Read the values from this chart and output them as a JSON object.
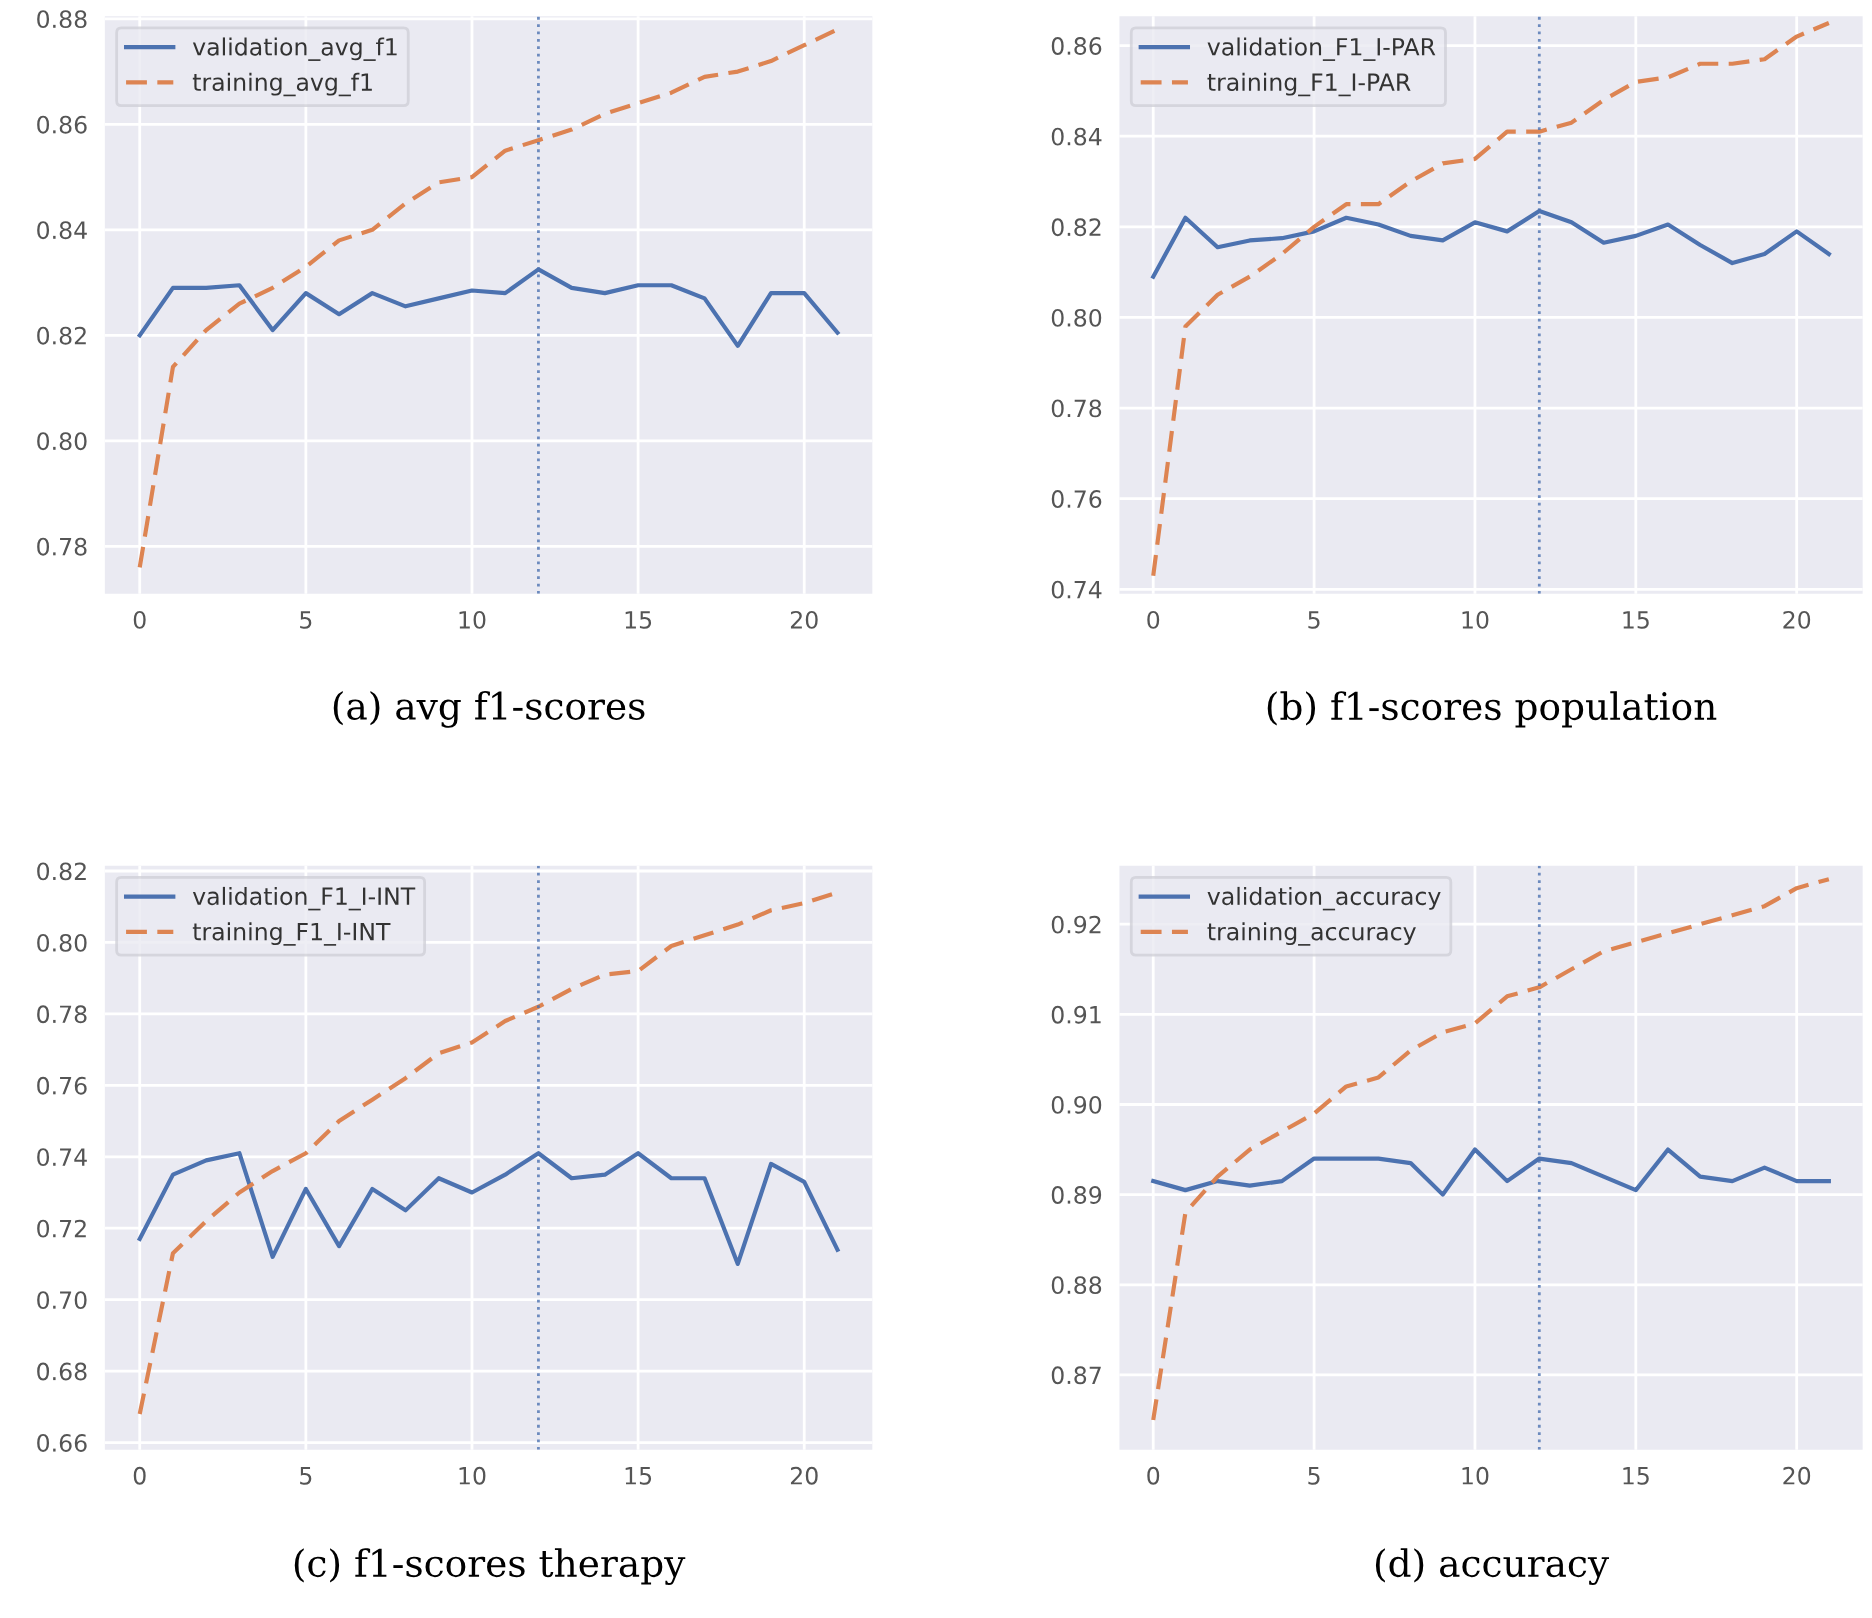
{
  "chart_data": [
    {
      "type": "line",
      "x": [
        0,
        1,
        2,
        3,
        4,
        5,
        6,
        7,
        8,
        9,
        10,
        11,
        12,
        13,
        14,
        15,
        16,
        17,
        18,
        19,
        20,
        21
      ],
      "xlim": [
        -1.05,
        22.05
      ],
      "xticks": [
        0,
        5,
        10,
        15,
        20
      ],
      "ylim": [
        0.771,
        0.8805
      ],
      "yticks": [
        {
          "value": 0.78,
          "label": "0.78"
        },
        {
          "value": 0.8,
          "label": "0.80"
        },
        {
          "value": 0.82,
          "label": "0.82"
        },
        {
          "value": 0.84,
          "label": "0.84"
        },
        {
          "value": 0.86,
          "label": "0.86"
        },
        {
          "value": 0.88,
          "label": "0.88"
        }
      ],
      "grid": true,
      "legend": "top left",
      "series": [
        {
          "name": "validation_avg_f1",
          "color": "#4c72b0",
          "line_style": "solid",
          "values": [
            0.82,
            0.829,
            0.829,
            0.8295,
            0.821,
            0.828,
            0.824,
            0.828,
            0.8255,
            0.827,
            0.8285,
            0.828,
            0.8325,
            0.829,
            0.828,
            0.8295,
            0.8295,
            0.827,
            0.818,
            0.828,
            0.828,
            0.8205
          ]
        },
        {
          "name": "training_avg_f1",
          "color": "#dd8452",
          "line_style": "dashed",
          "values": [
            0.776,
            0.814,
            0.821,
            0.826,
            0.829,
            0.833,
            0.838,
            0.84,
            0.845,
            0.849,
            0.85,
            0.855,
            0.857,
            0.859,
            0.862,
            0.864,
            0.866,
            0.869,
            0.87,
            0.872,
            0.875,
            0.878
          ]
        }
      ],
      "ref_lines": [
        {
          "axis": "x",
          "value": 12,
          "color": "#4c72b0",
          "line_style": "dotted"
        }
      ],
      "annotations": [
        "(a) avg f1-scores"
      ]
    },
    {
      "type": "line",
      "x": [
        0,
        1,
        2,
        3,
        4,
        5,
        6,
        7,
        8,
        9,
        10,
        11,
        12,
        13,
        14,
        15,
        16,
        17,
        18,
        19,
        20,
        21
      ],
      "xlim": [
        -1.05,
        22.05
      ],
      "xticks": [
        0,
        5,
        10,
        15,
        20
      ],
      "ylim": [
        0.739,
        0.8665
      ],
      "yticks": [
        {
          "value": 0.74,
          "label": "0.74"
        },
        {
          "value": 0.76,
          "label": "0.76"
        },
        {
          "value": 0.78,
          "label": "0.78"
        },
        {
          "value": 0.8,
          "label": "0.80"
        },
        {
          "value": 0.82,
          "label": "0.82"
        },
        {
          "value": 0.84,
          "label": "0.84"
        },
        {
          "value": 0.86,
          "label": "0.86"
        }
      ],
      "grid": true,
      "legend": "top left",
      "series": [
        {
          "name": "validation_F1_I-PAR",
          "color": "#4c72b0",
          "line_style": "solid",
          "values": [
            0.809,
            0.822,
            0.8155,
            0.817,
            0.8175,
            0.819,
            0.822,
            0.8205,
            0.818,
            0.817,
            0.821,
            0.819,
            0.8235,
            0.821,
            0.8165,
            0.818,
            0.8205,
            0.816,
            0.812,
            0.814,
            0.819,
            0.814
          ]
        },
        {
          "name": "training_F1_I-PAR",
          "color": "#dd8452",
          "line_style": "dashed",
          "values": [
            0.743,
            0.798,
            0.805,
            0.809,
            0.814,
            0.82,
            0.825,
            0.825,
            0.83,
            0.834,
            0.835,
            0.841,
            0.841,
            0.843,
            0.848,
            0.852,
            0.853,
            0.856,
            0.856,
            0.857,
            0.862,
            0.865
          ]
        }
      ],
      "ref_lines": [
        {
          "axis": "x",
          "value": 12,
          "color": "#4c72b0",
          "line_style": "dotted"
        }
      ],
      "annotations": [
        "(b) f1-scores population"
      ]
    },
    {
      "type": "line",
      "x": [
        0,
        1,
        2,
        3,
        4,
        5,
        6,
        7,
        8,
        9,
        10,
        11,
        12,
        13,
        14,
        15,
        16,
        17,
        18,
        19,
        20,
        21
      ],
      "xlim": [
        -1.05,
        22.05
      ],
      "xticks": [
        0,
        5,
        10,
        15,
        20
      ],
      "ylim": [
        0.658,
        0.8215
      ],
      "yticks": [
        {
          "value": 0.66,
          "label": "0.66"
        },
        {
          "value": 0.68,
          "label": "0.68"
        },
        {
          "value": 0.7,
          "label": "0.70"
        },
        {
          "value": 0.72,
          "label": "0.72"
        },
        {
          "value": 0.74,
          "label": "0.74"
        },
        {
          "value": 0.76,
          "label": "0.76"
        },
        {
          "value": 0.78,
          "label": "0.78"
        },
        {
          "value": 0.8,
          "label": "0.80"
        },
        {
          "value": 0.82,
          "label": "0.82"
        }
      ],
      "grid": true,
      "legend": "top left",
      "series": [
        {
          "name": "validation_F1_I-INT",
          "color": "#4c72b0",
          "line_style": "solid",
          "values": [
            0.717,
            0.735,
            0.739,
            0.741,
            0.712,
            0.731,
            0.715,
            0.731,
            0.725,
            0.734,
            0.73,
            0.735,
            0.741,
            0.734,
            0.735,
            0.741,
            0.734,
            0.734,
            0.71,
            0.738,
            0.733,
            0.714
          ]
        },
        {
          "name": "training_F1_I-INT",
          "color": "#dd8452",
          "line_style": "dashed",
          "values": [
            0.668,
            0.713,
            0.722,
            0.73,
            0.736,
            0.741,
            0.75,
            0.756,
            0.762,
            0.769,
            0.772,
            0.778,
            0.782,
            0.787,
            0.791,
            0.792,
            0.799,
            0.802,
            0.805,
            0.809,
            0.811,
            0.814
          ]
        }
      ],
      "ref_lines": [
        {
          "axis": "x",
          "value": 12,
          "color": "#4c72b0",
          "line_style": "dotted"
        }
      ],
      "annotations": [
        "(c) f1-scores therapy"
      ]
    },
    {
      "type": "line",
      "x": [
        0,
        1,
        2,
        3,
        4,
        5,
        6,
        7,
        8,
        9,
        10,
        11,
        12,
        13,
        14,
        15,
        16,
        17,
        18,
        19,
        20,
        21
      ],
      "xlim": [
        -1.05,
        22.05
      ],
      "xticks": [
        0,
        5,
        10,
        15,
        20
      ],
      "ylim": [
        0.8617,
        0.9265
      ],
      "yticks": [
        {
          "value": 0.87,
          "label": "0.87"
        },
        {
          "value": 0.88,
          "label": "0.88"
        },
        {
          "value": 0.89,
          "label": "0.89"
        },
        {
          "value": 0.9,
          "label": "0.90"
        },
        {
          "value": 0.91,
          "label": "0.91"
        },
        {
          "value": 0.92,
          "label": "0.92"
        }
      ],
      "grid": true,
      "legend": "top left",
      "series": [
        {
          "name": "validation_accuracy",
          "color": "#4c72b0",
          "line_style": "solid",
          "values": [
            0.8915,
            0.8905,
            0.8915,
            0.891,
            0.8915,
            0.894,
            0.894,
            0.894,
            0.8935,
            0.89,
            0.895,
            0.8915,
            0.894,
            0.8935,
            0.892,
            0.8905,
            0.895,
            0.892,
            0.8915,
            0.893,
            0.8915,
            0.8915
          ]
        },
        {
          "name": "training_accuracy",
          "color": "#dd8452",
          "line_style": "dashed",
          "values": [
            0.865,
            0.888,
            0.892,
            0.895,
            0.897,
            0.899,
            0.902,
            0.903,
            0.906,
            0.908,
            0.909,
            0.912,
            0.913,
            0.915,
            0.917,
            0.918,
            0.919,
            0.92,
            0.921,
            0.922,
            0.924,
            0.925
          ]
        }
      ],
      "ref_lines": [
        {
          "axis": "x",
          "value": 12,
          "color": "#4c72b0",
          "line_style": "dotted"
        }
      ],
      "annotations": [
        "(d) accuracy"
      ]
    }
  ]
}
